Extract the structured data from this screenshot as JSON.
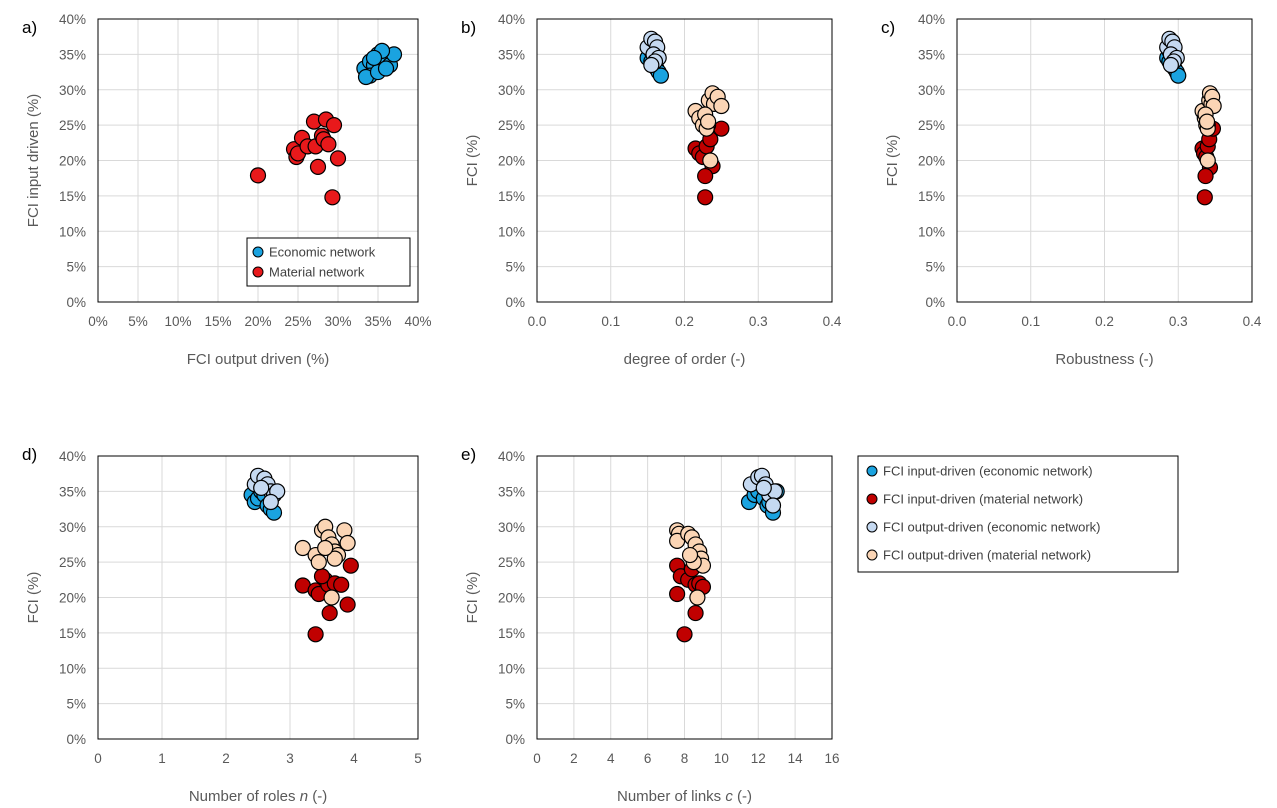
{
  "chart_data": [
    {
      "panel": "a)",
      "type": "scatter",
      "xlabel": "FCI output driven (%)",
      "ylabel": "FCI input driven (%)",
      "xlim": [
        0,
        0.4
      ],
      "ylim": [
        0,
        0.4
      ],
      "xticks": [
        0,
        0.05,
        0.1,
        0.15,
        0.2,
        0.25,
        0.3,
        0.35,
        0.4
      ],
      "xtick_labels": [
        "0%",
        "5%",
        "10%",
        "15%",
        "20%",
        "25%",
        "30%",
        "35%",
        "40%"
      ],
      "yticks": [
        0,
        0.05,
        0.1,
        0.15,
        0.2,
        0.25,
        0.3,
        0.35,
        0.4
      ],
      "ytick_labels": [
        "0%",
        "5%",
        "10%",
        "15%",
        "20%",
        "25%",
        "30%",
        "35%",
        "40%"
      ],
      "grid": true,
      "legend_position": "bottom-right",
      "series": [
        {
          "name": "Economic network",
          "color": "#1aa3e0",
          "role": "econ_in",
          "points": [
            [
              0.333,
              0.33
            ],
            [
              0.34,
              0.34
            ],
            [
              0.345,
              0.335
            ],
            [
              0.35,
              0.35
            ],
            [
              0.355,
              0.34
            ],
            [
              0.36,
              0.345
            ],
            [
              0.365,
              0.335
            ],
            [
              0.37,
              0.35
            ],
            [
              0.355,
              0.355
            ],
            [
              0.34,
              0.32
            ],
            [
              0.335,
              0.318
            ],
            [
              0.35,
              0.325
            ],
            [
              0.36,
              0.33
            ],
            [
              0.345,
              0.345
            ]
          ]
        },
        {
          "name": "Material network",
          "color": "#e8191b",
          "role": "mat_in",
          "points": [
            [
              0.2,
              0.179
            ],
            [
              0.245,
              0.216
            ],
            [
              0.248,
              0.205
            ],
            [
              0.25,
              0.21
            ],
            [
              0.255,
              0.232
            ],
            [
              0.262,
              0.22
            ],
            [
              0.27,
              0.255
            ],
            [
              0.272,
              0.22
            ],
            [
              0.275,
              0.191
            ],
            [
              0.28,
              0.235
            ],
            [
              0.282,
              0.23
            ],
            [
              0.285,
              0.258
            ],
            [
              0.288,
              0.223
            ],
            [
              0.295,
              0.25
            ],
            [
              0.3,
              0.203
            ],
            [
              0.293,
              0.148
            ]
          ]
        }
      ]
    },
    {
      "panel": "b)",
      "type": "scatter",
      "xlabel": "degree of order (-)",
      "ylabel": "FCI (%)",
      "xlim": [
        0,
        0.4
      ],
      "ylim": [
        0,
        0.4
      ],
      "xticks": [
        0,
        0.1,
        0.2,
        0.3,
        0.4
      ],
      "xtick_labels": [
        "0.0",
        "0.1",
        "0.2",
        "0.3",
        "0.4"
      ],
      "yticks": [
        0,
        0.05,
        0.1,
        0.15,
        0.2,
        0.25,
        0.3,
        0.35,
        0.4
      ],
      "ytick_labels": [
        "0%",
        "5%",
        "10%",
        "15%",
        "20%",
        "25%",
        "30%",
        "35%",
        "40%"
      ],
      "grid": true,
      "series": [
        {
          "role": "econ_in",
          "points": [
            [
              0.15,
              0.345
            ],
            [
              0.155,
              0.34
            ],
            [
              0.16,
              0.335
            ],
            [
              0.162,
              0.33
            ],
            [
              0.165,
              0.325
            ],
            [
              0.168,
              0.32
            ],
            [
              0.158,
              0.35
            ],
            [
              0.155,
              0.355
            ]
          ]
        },
        {
          "role": "mat_in",
          "points": [
            [
              0.215,
              0.217
            ],
            [
              0.22,
              0.21
            ],
            [
              0.225,
              0.205
            ],
            [
              0.23,
              0.22
            ],
            [
              0.235,
              0.23
            ],
            [
              0.238,
              0.192
            ],
            [
              0.228,
              0.178
            ],
            [
              0.228,
              0.148
            ],
            [
              0.25,
              0.245
            ],
            [
              0.232,
              0.25
            ]
          ]
        },
        {
          "role": "econ_out",
          "points": [
            [
              0.15,
              0.36
            ],
            [
              0.155,
              0.372
            ],
            [
              0.16,
              0.368
            ],
            [
              0.163,
              0.36
            ],
            [
              0.158,
              0.35
            ],
            [
              0.165,
              0.345
            ],
            [
              0.16,
              0.34
            ],
            [
              0.155,
              0.335
            ]
          ]
        },
        {
          "role": "mat_out",
          "points": [
            [
              0.215,
              0.27
            ],
            [
              0.22,
              0.26
            ],
            [
              0.225,
              0.25
            ],
            [
              0.23,
              0.245
            ],
            [
              0.233,
              0.285
            ],
            [
              0.238,
              0.295
            ],
            [
              0.24,
              0.28
            ],
            [
              0.245,
              0.29
            ],
            [
              0.25,
              0.277
            ],
            [
              0.228,
              0.265
            ],
            [
              0.232,
              0.255
            ],
            [
              0.235,
              0.2
            ]
          ]
        }
      ]
    },
    {
      "panel": "c)",
      "type": "scatter",
      "xlabel": "Robustness (-)",
      "ylabel": "FCI (%)",
      "xlim": [
        0,
        0.4
      ],
      "ylim": [
        0,
        0.4
      ],
      "xticks": [
        0,
        0.1,
        0.2,
        0.3,
        0.4
      ],
      "xtick_labels": [
        "0.0",
        "0.1",
        "0.2",
        "0.3",
        "0.4"
      ],
      "yticks": [
        0,
        0.05,
        0.1,
        0.15,
        0.2,
        0.25,
        0.3,
        0.35,
        0.4
      ],
      "ytick_labels": [
        "0%",
        "5%",
        "10%",
        "15%",
        "20%",
        "25%",
        "30%",
        "35%",
        "40%"
      ],
      "grid": true,
      "series": [
        {
          "role": "econ_in",
          "points": [
            [
              0.285,
              0.345
            ],
            [
              0.288,
              0.34
            ],
            [
              0.292,
              0.335
            ],
            [
              0.295,
              0.33
            ],
            [
              0.298,
              0.325
            ],
            [
              0.3,
              0.32
            ],
            [
              0.29,
              0.35
            ],
            [
              0.288,
              0.355
            ]
          ]
        },
        {
          "role": "mat_in",
          "points": [
            [
              0.333,
              0.217
            ],
            [
              0.335,
              0.21
            ],
            [
              0.338,
              0.205
            ],
            [
              0.34,
              0.22
            ],
            [
              0.342,
              0.23
            ],
            [
              0.343,
              0.19
            ],
            [
              0.337,
              0.178
            ],
            [
              0.336,
              0.148
            ],
            [
              0.347,
              0.245
            ],
            [
              0.34,
              0.25
            ]
          ]
        },
        {
          "role": "econ_out",
          "points": [
            [
              0.285,
              0.36
            ],
            [
              0.288,
              0.372
            ],
            [
              0.292,
              0.368
            ],
            [
              0.295,
              0.36
            ],
            [
              0.29,
              0.35
            ],
            [
              0.298,
              0.345
            ],
            [
              0.294,
              0.34
            ],
            [
              0.29,
              0.335
            ]
          ]
        },
        {
          "role": "mat_out",
          "points": [
            [
              0.333,
              0.27
            ],
            [
              0.336,
              0.26
            ],
            [
              0.338,
              0.25
            ],
            [
              0.34,
              0.245
            ],
            [
              0.342,
              0.285
            ],
            [
              0.343,
              0.295
            ],
            [
              0.345,
              0.28
            ],
            [
              0.346,
              0.29
            ],
            [
              0.348,
              0.277
            ],
            [
              0.337,
              0.265
            ],
            [
              0.339,
              0.255
            ],
            [
              0.34,
              0.2
            ]
          ]
        }
      ]
    },
    {
      "panel": "d)",
      "type": "scatter",
      "xlabel_parts": [
        "Number of roles ",
        "n",
        " (-)"
      ],
      "ylabel": "FCI (%)",
      "xlim": [
        0,
        5
      ],
      "ylim": [
        0,
        0.4
      ],
      "xticks": [
        0,
        1,
        2,
        3,
        4,
        5
      ],
      "xtick_labels": [
        "0",
        "1",
        "2",
        "3",
        "4",
        "5"
      ],
      "yticks": [
        0,
        0.05,
        0.1,
        0.15,
        0.2,
        0.25,
        0.3,
        0.35,
        0.4
      ],
      "ytick_labels": [
        "0%",
        "5%",
        "10%",
        "15%",
        "20%",
        "25%",
        "30%",
        "35%",
        "40%"
      ],
      "grid": true,
      "series": [
        {
          "role": "econ_in",
          "points": [
            [
              2.4,
              0.345
            ],
            [
              2.45,
              0.335
            ],
            [
              2.5,
              0.34
            ],
            [
              2.55,
              0.35
            ],
            [
              2.6,
              0.345
            ],
            [
              2.65,
              0.33
            ],
            [
              2.7,
              0.325
            ],
            [
              2.75,
              0.32
            ]
          ]
        },
        {
          "role": "mat_in",
          "points": [
            [
              3.2,
              0.217
            ],
            [
              3.4,
              0.21
            ],
            [
              3.45,
              0.205
            ],
            [
              3.55,
              0.225
            ],
            [
              3.6,
              0.218
            ],
            [
              3.62,
              0.178
            ],
            [
              3.7,
              0.22
            ],
            [
              3.8,
              0.218
            ],
            [
              3.9,
              0.19
            ],
            [
              3.95,
              0.245
            ],
            [
              3.4,
              0.148
            ],
            [
              3.5,
              0.23
            ]
          ]
        },
        {
          "role": "econ_out",
          "points": [
            [
              2.45,
              0.36
            ],
            [
              2.5,
              0.372
            ],
            [
              2.6,
              0.368
            ],
            [
              2.65,
              0.36
            ],
            [
              2.7,
              0.35
            ],
            [
              2.75,
              0.345
            ],
            [
              2.8,
              0.35
            ],
            [
              2.55,
              0.355
            ],
            [
              2.7,
              0.335
            ]
          ]
        },
        {
          "role": "mat_out",
          "points": [
            [
              3.2,
              0.27
            ],
            [
              3.4,
              0.26
            ],
            [
              3.45,
              0.25
            ],
            [
              3.5,
              0.295
            ],
            [
              3.55,
              0.3
            ],
            [
              3.6,
              0.285
            ],
            [
              3.65,
              0.275
            ],
            [
              3.7,
              0.265
            ],
            [
              3.75,
              0.26
            ],
            [
              3.85,
              0.295
            ],
            [
              3.9,
              0.277
            ],
            [
              3.65,
              0.2
            ],
            [
              3.7,
              0.255
            ],
            [
              3.55,
              0.27
            ]
          ]
        }
      ]
    },
    {
      "panel": "e)",
      "type": "scatter",
      "xlabel_parts": [
        "Number of links ",
        "c",
        " (-)"
      ],
      "ylabel": "FCI (%)",
      "xlim": [
        0,
        16
      ],
      "ylim": [
        0,
        0.4
      ],
      "xticks": [
        0,
        2,
        4,
        6,
        8,
        10,
        12,
        14,
        16
      ],
      "xtick_labels": [
        "0",
        "2",
        "4",
        "6",
        "8",
        "10",
        "12",
        "14",
        "16"
      ],
      "yticks": [
        0,
        0.05,
        0.1,
        0.15,
        0.2,
        0.25,
        0.3,
        0.35,
        0.4
      ],
      "ytick_labels": [
        "0%",
        "5%",
        "10%",
        "15%",
        "20%",
        "25%",
        "30%",
        "35%",
        "40%"
      ],
      "grid": true,
      "series": [
        {
          "role": "econ_in",
          "points": [
            [
              11.5,
              0.335
            ],
            [
              11.8,
              0.345
            ],
            [
              12.0,
              0.35
            ],
            [
              12.3,
              0.34
            ],
            [
              12.5,
              0.33
            ],
            [
              12.8,
              0.32
            ],
            [
              13.0,
              0.35
            ],
            [
              12.6,
              0.335
            ]
          ]
        },
        {
          "role": "mat_in",
          "points": [
            [
              7.6,
              0.245
            ],
            [
              7.6,
              0.205
            ],
            [
              7.8,
              0.23
            ],
            [
              8.0,
              0.148
            ],
            [
              8.2,
              0.225
            ],
            [
              8.4,
              0.24
            ],
            [
              8.6,
              0.218
            ],
            [
              8.6,
              0.178
            ],
            [
              8.8,
              0.22
            ],
            [
              9.0,
              0.215
            ],
            [
              8.8,
              0.25
            ]
          ]
        },
        {
          "role": "econ_out",
          "points": [
            [
              11.6,
              0.36
            ],
            [
              12.0,
              0.37
            ],
            [
              12.2,
              0.372
            ],
            [
              12.4,
              0.36
            ],
            [
              12.6,
              0.345
            ],
            [
              12.9,
              0.35
            ],
            [
              12.8,
              0.33
            ],
            [
              12.3,
              0.355
            ]
          ]
        },
        {
          "role": "mat_out",
          "points": [
            [
              7.6,
              0.295
            ],
            [
              7.7,
              0.29
            ],
            [
              7.6,
              0.28
            ],
            [
              8.2,
              0.29
            ],
            [
              8.4,
              0.285
            ],
            [
              8.6,
              0.275
            ],
            [
              8.8,
              0.265
            ],
            [
              8.9,
              0.255
            ],
            [
              9.0,
              0.245
            ],
            [
              8.7,
              0.2
            ],
            [
              8.5,
              0.25
            ],
            [
              8.3,
              0.26
            ]
          ]
        }
      ]
    }
  ],
  "legend_a": [
    "Economic network",
    "Material network"
  ],
  "legend_main": [
    {
      "label": "FCI input-driven (economic network)",
      "role": "econ_in"
    },
    {
      "label": "FCI input-driven (material network)",
      "role": "mat_in"
    },
    {
      "label": "FCI output-driven (economic network)",
      "role": "econ_out"
    },
    {
      "label": "FCI output-driven (material network)",
      "role": "mat_out"
    }
  ],
  "colors": {
    "econ_in": "#1aa3e0",
    "mat_in": "#c00000",
    "econ_out": "#c5d9f1",
    "mat_out": "#fbd5b5",
    "mat_in_a": "#e8191b",
    "grid": "#d9d9d9",
    "axis": "#000000"
  }
}
